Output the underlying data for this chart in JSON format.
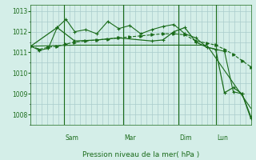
{
  "bg_color": "#d4eee8",
  "grid_color": "#aacccc",
  "line_color": "#1a6b1a",
  "xlabel": "Pression niveau de la mer( hPa )",
  "ylim": [
    1007.5,
    1013.3
  ],
  "yticks": [
    1008,
    1009,
    1010,
    1011,
    1012,
    1013
  ],
  "day_labels": [
    "Sam",
    "Mar",
    "Dim",
    "Lun"
  ],
  "day_positions": [
    0.15,
    0.42,
    0.67,
    0.84
  ],
  "series1_x": [
    0,
    0.04,
    0.08,
    0.12,
    0.16,
    0.2,
    0.25,
    0.3,
    0.35,
    0.4,
    0.45,
    0.5,
    0.55,
    0.6,
    0.65,
    0.7,
    0.75,
    0.8,
    0.84,
    0.88,
    0.92,
    0.96,
    1.0
  ],
  "series1_y": [
    1011.3,
    1011.1,
    1011.2,
    1012.2,
    1012.6,
    1012.0,
    1012.1,
    1011.9,
    1012.5,
    1012.15,
    1012.3,
    1011.9,
    1012.1,
    1012.25,
    1012.35,
    1011.9,
    1011.7,
    1011.25,
    1011.15,
    1011.05,
    1009.1,
    1009.0,
    1007.9
  ],
  "series2_x": [
    0,
    0.04,
    0.08,
    0.12,
    0.16,
    0.2,
    0.25,
    0.3,
    0.35,
    0.4,
    0.45,
    0.5,
    0.55,
    0.6,
    0.65,
    0.7,
    0.75,
    0.8,
    0.84,
    0.88,
    0.92,
    0.96,
    1.0
  ],
  "series2_y": [
    1011.3,
    1011.15,
    1011.25,
    1011.3,
    1011.4,
    1011.5,
    1011.55,
    1011.6,
    1011.65,
    1011.7,
    1011.75,
    1011.8,
    1011.85,
    1011.9,
    1011.9,
    1011.85,
    1011.55,
    1011.45,
    1011.35,
    1011.15,
    1010.9,
    1010.6,
    1010.3
  ],
  "series3_x": [
    0,
    0.12,
    0.2,
    0.3,
    0.4,
    0.55,
    0.6,
    0.65,
    0.7,
    0.75,
    0.8,
    0.84,
    0.88,
    0.92,
    0.96,
    1.0
  ],
  "series3_y": [
    1011.3,
    1012.2,
    1011.55,
    1011.6,
    1011.7,
    1011.55,
    1011.6,
    1012.0,
    1012.2,
    1011.5,
    1011.25,
    1011.15,
    1009.05,
    1009.3,
    1009.0,
    1007.8
  ],
  "series4_x": [
    0,
    0.2,
    0.4,
    0.6,
    0.8,
    1.0
  ],
  "series4_y": [
    1011.3,
    1011.35,
    1011.35,
    1011.35,
    1011.35,
    1008.3
  ]
}
